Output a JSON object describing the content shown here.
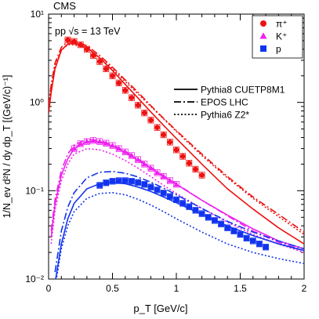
{
  "chart_data": {
    "type": "scatter",
    "experiment": "CMS",
    "energy_label_prefix": "pp ",
    "energy_label_sqrt": "√s",
    "energy_label_suffix": " = 13 TeV",
    "ylabel": "1/N_ev d²N / dy dp_T [(GeV/c)⁻¹]",
    "xlabel": "p_T [GeV/c]",
    "xlim": [
      0,
      2
    ],
    "ylim": [
      0.01,
      10
    ],
    "yscale": "log",
    "x_ticks": [
      "0",
      "0.5",
      "1",
      "1.5",
      "2"
    ],
    "y_ticks": [
      "10⁻²",
      "10⁻¹",
      "10⁰",
      "10¹"
    ],
    "legend_markers": {
      "position": "top-right",
      "entries": [
        {
          "label": "π⁺",
          "marker": "circle",
          "color": "#ee1111"
        },
        {
          "label": "K⁺",
          "marker": "triangle",
          "color": "#ee22ee"
        },
        {
          "label": "p",
          "marker": "square",
          "color": "#1133ee"
        }
      ]
    },
    "legend_models": {
      "entries": [
        {
          "label": "Pythia8 CUETP8M1",
          "style": "solid"
        },
        {
          "label": "EPOS LHC",
          "style": "dashdot"
        },
        {
          "label": "Pythia6 Z2*",
          "style": "dotted"
        }
      ]
    },
    "series": [
      {
        "name": "π⁺",
        "color": "#ee1111",
        "marker": "circle",
        "points": [
          [
            0.15,
            5.1
          ],
          [
            0.2,
            4.9
          ],
          [
            0.25,
            4.5
          ],
          [
            0.3,
            4.0
          ],
          [
            0.35,
            3.4
          ],
          [
            0.4,
            2.9
          ],
          [
            0.45,
            2.4
          ],
          [
            0.5,
            2.0
          ],
          [
            0.55,
            1.66
          ],
          [
            0.6,
            1.37
          ],
          [
            0.65,
            1.13
          ],
          [
            0.7,
            0.93
          ],
          [
            0.75,
            0.76
          ],
          [
            0.8,
            0.63
          ],
          [
            0.85,
            0.52
          ],
          [
            0.9,
            0.43
          ],
          [
            0.95,
            0.355
          ],
          [
            1.0,
            0.29
          ],
          [
            1.05,
            0.245
          ],
          [
            1.1,
            0.205
          ],
          [
            1.15,
            0.175
          ],
          [
            1.2,
            0.15
          ]
        ],
        "models": {
          "solid": [
            [
              0.0,
              0.75
            ],
            [
              0.02,
              1.3
            ],
            [
              0.05,
              2.4
            ],
            [
              0.1,
              3.9
            ],
            [
              0.15,
              4.6
            ],
            [
              0.2,
              4.7
            ],
            [
              0.3,
              4.2
            ],
            [
              0.4,
              3.2
            ],
            [
              0.5,
              2.3
            ],
            [
              0.6,
              1.6
            ],
            [
              0.7,
              1.12
            ],
            [
              0.8,
              0.78
            ],
            [
              0.9,
              0.55
            ],
            [
              1.0,
              0.39
            ],
            [
              1.2,
              0.2
            ],
            [
              1.4,
              0.105
            ],
            [
              1.6,
              0.062
            ],
            [
              1.8,
              0.038
            ],
            [
              2.0,
              0.025
            ]
          ],
          "dashdot": [
            [
              0.0,
              0.95
            ],
            [
              0.02,
              1.6
            ],
            [
              0.05,
              2.8
            ],
            [
              0.1,
              4.2
            ],
            [
              0.15,
              4.9
            ],
            [
              0.2,
              4.9
            ],
            [
              0.3,
              4.4
            ],
            [
              0.4,
              3.4
            ],
            [
              0.5,
              2.5
            ],
            [
              0.6,
              1.8
            ],
            [
              0.7,
              1.3
            ],
            [
              0.8,
              0.92
            ],
            [
              0.9,
              0.66
            ],
            [
              1.0,
              0.48
            ],
            [
              1.2,
              0.26
            ],
            [
              1.4,
              0.145
            ],
            [
              1.6,
              0.085
            ],
            [
              1.8,
              0.054
            ],
            [
              2.0,
              0.034
            ]
          ],
          "dotted": [
            [
              0.0,
              0.9
            ],
            [
              0.02,
              1.5
            ],
            [
              0.05,
              2.6
            ],
            [
              0.1,
              3.9
            ],
            [
              0.15,
              4.5
            ],
            [
              0.2,
              4.5
            ],
            [
              0.3,
              4.1
            ],
            [
              0.4,
              3.2
            ],
            [
              0.5,
              2.4
            ],
            [
              0.6,
              1.72
            ],
            [
              0.7,
              1.25
            ],
            [
              0.8,
              0.9
            ],
            [
              0.9,
              0.65
            ],
            [
              1.0,
              0.47
            ],
            [
              1.2,
              0.25
            ],
            [
              1.4,
              0.14
            ],
            [
              1.6,
              0.082
            ],
            [
              1.8,
              0.051
            ],
            [
              2.0,
              0.032
            ]
          ]
        }
      },
      {
        "name": "K⁺",
        "color": "#ee22ee",
        "marker": "triangle",
        "points": [
          [
            0.2,
            0.3
          ],
          [
            0.25,
            0.34
          ],
          [
            0.3,
            0.36
          ],
          [
            0.35,
            0.37
          ],
          [
            0.4,
            0.36
          ],
          [
            0.45,
            0.345
          ],
          [
            0.5,
            0.325
          ],
          [
            0.55,
            0.3
          ],
          [
            0.6,
            0.275
          ],
          [
            0.65,
            0.25
          ],
          [
            0.7,
            0.225
          ],
          [
            0.75,
            0.2
          ],
          [
            0.8,
            0.18
          ],
          [
            0.85,
            0.16
          ],
          [
            0.9,
            0.145
          ],
          [
            0.95,
            0.13
          ],
          [
            1.0,
            0.118
          ]
        ],
        "models": {
          "solid": [
            [
              0.02,
              0.03
            ],
            [
              0.05,
              0.07
            ],
            [
              0.1,
              0.15
            ],
            [
              0.15,
              0.23
            ],
            [
              0.2,
              0.3
            ],
            [
              0.3,
              0.36
            ],
            [
              0.4,
              0.36
            ],
            [
              0.5,
              0.32
            ],
            [
              0.6,
              0.27
            ],
            [
              0.7,
              0.22
            ],
            [
              0.8,
              0.18
            ],
            [
              0.9,
              0.145
            ],
            [
              1.0,
              0.118
            ],
            [
              1.2,
              0.078
            ],
            [
              1.4,
              0.053
            ],
            [
              1.6,
              0.037
            ],
            [
              1.8,
              0.027
            ],
            [
              2.0,
              0.022
            ]
          ],
          "dashdot": [
            [
              0.02,
              0.035
            ],
            [
              0.05,
              0.08
            ],
            [
              0.1,
              0.17
            ],
            [
              0.15,
              0.26
            ],
            [
              0.2,
              0.33
            ],
            [
              0.3,
              0.38
            ],
            [
              0.4,
              0.37
            ],
            [
              0.5,
              0.33
            ],
            [
              0.6,
              0.28
            ],
            [
              0.7,
              0.23
            ],
            [
              0.8,
              0.185
            ],
            [
              0.9,
              0.148
            ],
            [
              1.0,
              0.12
            ],
            [
              1.2,
              0.078
            ],
            [
              1.4,
              0.052
            ],
            [
              1.6,
              0.035
            ],
            [
              1.8,
              0.026
            ],
            [
              2.0,
              0.021
            ]
          ],
          "dotted": [
            [
              0.02,
              0.025
            ],
            [
              0.05,
              0.06
            ],
            [
              0.1,
              0.13
            ],
            [
              0.15,
              0.2
            ],
            [
              0.2,
              0.26
            ],
            [
              0.3,
              0.3
            ],
            [
              0.4,
              0.29
            ],
            [
              0.5,
              0.26
            ],
            [
              0.6,
              0.22
            ],
            [
              0.7,
              0.18
            ],
            [
              0.8,
              0.145
            ],
            [
              0.9,
              0.115
            ],
            [
              1.0,
              0.093
            ],
            [
              1.2,
              0.063
            ],
            [
              1.4,
              0.044
            ],
            [
              1.6,
              0.032
            ],
            [
              1.8,
              0.025
            ],
            [
              2.0,
              0.02
            ]
          ]
        }
      },
      {
        "name": "p",
        "color": "#1133ee",
        "marker": "square",
        "points": [
          [
            0.4,
            0.115
          ],
          [
            0.45,
            0.123
          ],
          [
            0.5,
            0.128
          ],
          [
            0.55,
            0.13
          ],
          [
            0.6,
            0.13
          ],
          [
            0.65,
            0.128
          ],
          [
            0.7,
            0.124
          ],
          [
            0.75,
            0.118
          ],
          [
            0.8,
            0.11
          ],
          [
            0.85,
            0.102
          ],
          [
            0.9,
            0.094
          ],
          [
            0.95,
            0.086
          ],
          [
            1.0,
            0.079
          ],
          [
            1.05,
            0.072
          ],
          [
            1.1,
            0.066
          ],
          [
            1.15,
            0.06
          ],
          [
            1.2,
            0.055
          ],
          [
            1.25,
            0.05
          ],
          [
            1.3,
            0.046
          ],
          [
            1.35,
            0.042
          ],
          [
            1.4,
            0.038
          ],
          [
            1.45,
            0.035
          ],
          [
            1.5,
            0.032
          ],
          [
            1.55,
            0.029
          ],
          [
            1.6,
            0.027
          ],
          [
            1.65,
            0.025
          ],
          [
            1.7,
            0.023
          ]
        ],
        "models": {
          "solid": [
            [
              0.05,
              0.009
            ],
            [
              0.1,
              0.025
            ],
            [
              0.15,
              0.048
            ],
            [
              0.2,
              0.072
            ],
            [
              0.3,
              0.105
            ],
            [
              0.4,
              0.12
            ],
            [
              0.5,
              0.125
            ],
            [
              0.6,
              0.12
            ],
            [
              0.7,
              0.11
            ],
            [
              0.8,
              0.098
            ],
            [
              0.9,
              0.085
            ],
            [
              1.0,
              0.073
            ],
            [
              1.2,
              0.054
            ],
            [
              1.4,
              0.04
            ],
            [
              1.6,
              0.031
            ],
            [
              1.8,
              0.025
            ],
            [
              2.0,
              0.021
            ]
          ],
          "dashdot": [
            [
              0.05,
              0.012
            ],
            [
              0.1,
              0.035
            ],
            [
              0.15,
              0.065
            ],
            [
              0.2,
              0.095
            ],
            [
              0.3,
              0.14
            ],
            [
              0.4,
              0.162
            ],
            [
              0.5,
              0.165
            ],
            [
              0.6,
              0.158
            ],
            [
              0.7,
              0.143
            ],
            [
              0.8,
              0.125
            ],
            [
              0.9,
              0.107
            ],
            [
              1.0,
              0.09
            ],
            [
              1.2,
              0.063
            ],
            [
              1.4,
              0.045
            ],
            [
              1.6,
              0.034
            ],
            [
              1.8,
              0.027
            ],
            [
              2.0,
              0.022
            ]
          ],
          "dotted": [
            [
              0.05,
              0.008
            ],
            [
              0.1,
              0.022
            ],
            [
              0.15,
              0.04
            ],
            [
              0.2,
              0.058
            ],
            [
              0.3,
              0.082
            ],
            [
              0.4,
              0.093
            ],
            [
              0.5,
              0.095
            ],
            [
              0.6,
              0.09
            ],
            [
              0.7,
              0.08
            ],
            [
              0.8,
              0.069
            ],
            [
              0.9,
              0.058
            ],
            [
              1.0,
              0.048
            ],
            [
              1.2,
              0.034
            ],
            [
              1.4,
              0.025
            ],
            [
              1.6,
              0.02
            ],
            [
              1.8,
              0.017
            ],
            [
              2.0,
              0.015
            ]
          ]
        }
      }
    ]
  }
}
